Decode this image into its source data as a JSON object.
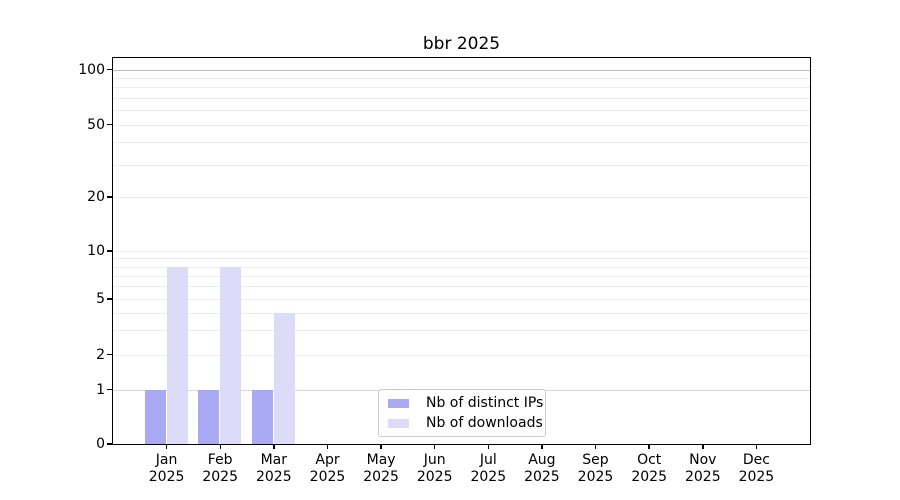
{
  "title": "bbr 2025",
  "chart_data": {
    "type": "bar",
    "title": "bbr 2025",
    "categories": [
      "Jan 2025",
      "Feb 2025",
      "Mar 2025",
      "Apr 2025",
      "May 2025",
      "Jun 2025",
      "Jul 2025",
      "Aug 2025",
      "Sep 2025",
      "Oct 2025",
      "Nov 2025",
      "Dec 2025"
    ],
    "series": [
      {
        "name": "Nb of distinct IPs",
        "color": "#a9a9f4",
        "values": [
          1,
          1,
          1,
          0,
          0,
          0,
          0,
          0,
          0,
          0,
          0,
          0
        ]
      },
      {
        "name": "Nb of downloads",
        "color": "#dcdcf9",
        "values": [
          8,
          8,
          4,
          0,
          0,
          0,
          0,
          0,
          0,
          0,
          0,
          0
        ]
      }
    ],
    "xlabel": "",
    "ylabel": "",
    "y_scale": "symlog",
    "ylim": [
      0,
      100
    ],
    "y_major_ticks": [
      100,
      50,
      20,
      10,
      5,
      2,
      1,
      0
    ],
    "y_minor_ticks": [
      3,
      4,
      6,
      7,
      8,
      9,
      30,
      40,
      60,
      70,
      80,
      90
    ],
    "grid": true,
    "legend_position": "lower center"
  },
  "colors": {
    "background": "#ffffff",
    "axis": "#000000",
    "grid_minor": "#ececec",
    "grid_line_1": "#d8d8d8",
    "grid_line_100": "#bbbbbb",
    "legend_border": "#cccccc",
    "text": "#000000"
  }
}
